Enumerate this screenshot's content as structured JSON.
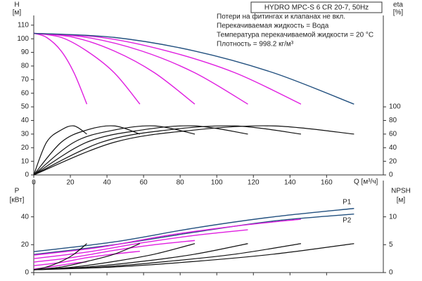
{
  "chart_data": [
    {
      "type": "line",
      "title": "HYDRO MPC-S 6 CR 20-7, 50Hz",
      "notes": [
        "Потери на фитингах и клапанах не вкл.",
        "Перекачиваемая жидкость = Вода",
        "Температура перекачиваемой жидкости = 20 °C",
        "Плотность = 998.2 кг/м³"
      ],
      "xlabel": "Q [м³/ч]",
      "ylabel": "H",
      "yunit": "[м]",
      "y2label": "eta",
      "y2unit": "[%]",
      "xlim": [
        0,
        191
      ],
      "xticks": [
        0,
        20,
        40,
        60,
        80,
        100,
        120,
        140,
        160
      ],
      "ylim": [
        0,
        113
      ],
      "yticks": [
        0,
        10,
        20,
        30,
        40,
        50,
        60,
        70,
        80,
        90,
        100,
        110
      ],
      "y2lim": [
        0,
        226
      ],
      "y2ticks": [
        0,
        20,
        40,
        60,
        80,
        100
      ],
      "series": [
        {
          "color": "#e01ee0",
          "x": [
            0,
            7,
            15,
            22,
            29
          ],
          "values": [
            104,
            101,
            91,
            75,
            52
          ]
        },
        {
          "color": "#e01ee0",
          "x": [
            0,
            15,
            29,
            44,
            58
          ],
          "values": [
            104,
            101,
            91,
            75,
            52
          ]
        },
        {
          "color": "#e01ee0",
          "x": [
            0,
            22,
            44,
            66,
            88
          ],
          "values": [
            104,
            101,
            91,
            75,
            52
          ]
        },
        {
          "color": "#e01ee0",
          "x": [
            0,
            29,
            59,
            88,
            117
          ],
          "values": [
            104,
            101,
            91,
            75,
            52
          ]
        },
        {
          "color": "#e01ee0",
          "x": [
            0,
            37,
            73,
            110,
            146
          ],
          "values": [
            104,
            101,
            91,
            75,
            52
          ]
        },
        {
          "color": "#22507f",
          "x": [
            0,
            44,
            88,
            131,
            175
          ],
          "values": [
            104,
            101,
            91,
            75,
            52
          ]
        },
        {
          "color": "#111111",
          "axis": "y2",
          "x": [
            0,
            7,
            15,
            22,
            29
          ],
          "values": [
            0,
            48,
            66,
            72,
            60
          ]
        },
        {
          "color": "#111111",
          "axis": "y2",
          "x": [
            0,
            15,
            29,
            44,
            58
          ],
          "values": [
            0,
            48,
            66,
            72,
            60
          ]
        },
        {
          "color": "#111111",
          "axis": "y2",
          "x": [
            0,
            22,
            44,
            66,
            88
          ],
          "values": [
            0,
            48,
            66,
            72,
            60
          ]
        },
        {
          "color": "#111111",
          "axis": "y2",
          "x": [
            0,
            29,
            59,
            88,
            117
          ],
          "values": [
            0,
            48,
            66,
            72,
            60
          ]
        },
        {
          "color": "#111111",
          "axis": "y2",
          "x": [
            0,
            37,
            73,
            110,
            146
          ],
          "values": [
            0,
            48,
            66,
            72,
            60
          ]
        },
        {
          "color": "#111111",
          "axis": "y2",
          "x": [
            0,
            44,
            88,
            131,
            175
          ],
          "values": [
            0,
            48,
            66,
            72,
            60
          ]
        }
      ]
    },
    {
      "type": "line",
      "ylabel": "P",
      "yunit": "[кВт]",
      "y2label": "NPSH",
      "y2unit": "[м]",
      "xlim": [
        0,
        191
      ],
      "ylim": [
        0,
        62
      ],
      "yticks": [
        0,
        20,
        40
      ],
      "y2lim": [
        0,
        15.5
      ],
      "y2ticks": [
        0,
        5,
        10
      ],
      "series": [
        {
          "color": "#22507f",
          "name": "P1",
          "x": [
            0,
            44,
            88,
            131,
            175
          ],
          "values": [
            15,
            22,
            32,
            40,
            46
          ]
        },
        {
          "color": "#22507f",
          "name": "P2",
          "x": [
            0,
            44,
            88,
            131,
            175
          ],
          "values": [
            13,
            20,
            29,
            37,
            42
          ]
        },
        {
          "color": "#e01ee0",
          "x": [
            0,
            7,
            15,
            22,
            29
          ],
          "values": [
            2.5,
            3.7,
            5.3,
            6.7,
            7.7
          ]
        },
        {
          "color": "#e01ee0",
          "x": [
            0,
            15,
            29,
            44,
            58
          ],
          "values": [
            5,
            7.3,
            10.7,
            13.3,
            15.3
          ]
        },
        {
          "color": "#e01ee0",
          "x": [
            0,
            22,
            44,
            66,
            88
          ],
          "values": [
            7.5,
            11,
            16,
            20,
            23
          ]
        },
        {
          "color": "#e01ee0",
          "x": [
            0,
            29,
            59,
            88,
            117
          ],
          "values": [
            10,
            14.7,
            21.3,
            26.7,
            30.7
          ]
        },
        {
          "color": "#e01ee0",
          "x": [
            0,
            37,
            73,
            110,
            146
          ],
          "values": [
            12.5,
            18.3,
            26.7,
            33.3,
            38.3
          ]
        },
        {
          "color": "#111111",
          "axis": "y2",
          "x": [
            0,
            7,
            15,
            22,
            29
          ],
          "values": [
            0.5,
            1,
            2,
            3.3,
            5.2
          ]
        },
        {
          "color": "#111111",
          "axis": "y2",
          "x": [
            0,
            15,
            29,
            44,
            58
          ],
          "values": [
            0.5,
            1,
            2,
            3.3,
            5.2
          ]
        },
        {
          "color": "#111111",
          "axis": "y2",
          "x": [
            0,
            22,
            44,
            66,
            88
          ],
          "values": [
            0.5,
            1,
            2,
            3.3,
            5.2
          ]
        },
        {
          "color": "#111111",
          "axis": "y2",
          "x": [
            0,
            29,
            59,
            88,
            117
          ],
          "values": [
            0.5,
            1,
            2,
            3.3,
            5.2
          ]
        },
        {
          "color": "#111111",
          "axis": "y2",
          "x": [
            0,
            37,
            73,
            110,
            146
          ],
          "values": [
            0.5,
            1,
            2,
            3.3,
            5.2
          ]
        },
        {
          "color": "#111111",
          "axis": "y2",
          "x": [
            0,
            44,
            88,
            131,
            175
          ],
          "values": [
            0.5,
            1,
            2,
            3.3,
            5.2
          ]
        }
      ]
    }
  ]
}
